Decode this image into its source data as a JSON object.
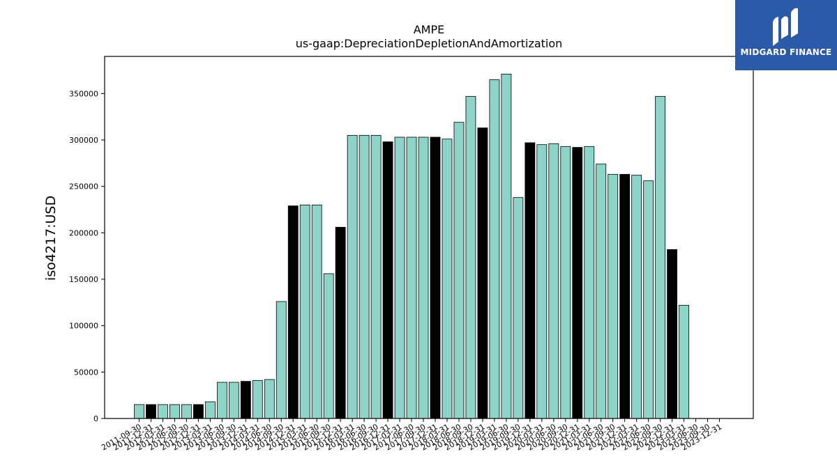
{
  "brand": {
    "name": "MIDGARD FINANCE",
    "logo": "midgard-finance-logo",
    "bg_color": "#2d5aa8"
  },
  "colors": {
    "bar_default": "#8dd3c7",
    "bar_year_end": "#000000",
    "edge": "#000000"
  },
  "chart_data": {
    "type": "bar",
    "title": "AMPE",
    "subtitle": "us-gaap:DepreciationDepletionAndAmortization",
    "ylabel": "iso4217:USD",
    "xlabel": "",
    "ylim": [
      0,
      390000
    ],
    "yticks": [
      0,
      50000,
      100000,
      150000,
      200000,
      250000,
      300000,
      350000
    ],
    "grid": false,
    "categories": [
      "2011-09-30",
      "2011-12-31",
      "2012-03-31",
      "2012-06-30",
      "2012-09-30",
      "2012-12-31",
      "2013-03-31",
      "2013-06-30",
      "2013-09-30",
      "2013-12-31",
      "2014-03-31",
      "2014-06-30",
      "2014-09-30",
      "2014-12-31",
      "2015-03-31",
      "2015-06-30",
      "2015-09-30",
      "2015-12-31",
      "2016-03-31",
      "2016-06-30",
      "2016-09-30",
      "2016-12-31",
      "2017-03-31",
      "2017-06-30",
      "2017-09-30",
      "2017-12-31",
      "2018-03-31",
      "2018-06-30",
      "2018-09-30",
      "2018-12-31",
      "2019-03-31",
      "2019-06-30",
      "2019-09-30",
      "2019-12-31",
      "2020-03-31",
      "2020-06-30",
      "2020-09-30",
      "2020-12-31",
      "2021-03-31",
      "2021-06-30",
      "2021-09-30",
      "2021-12-31",
      "2022-03-31",
      "2022-06-30",
      "2022-09-30",
      "2022-12-31",
      "2023-03-31",
      "2023-06-30",
      "2023-09-30",
      "2023-12-31"
    ],
    "values": [
      15000,
      15000,
      15000,
      15000,
      15000,
      15000,
      18000,
      39000,
      39000,
      40000,
      41000,
      42000,
      126000,
      229000,
      230000,
      230000,
      156000,
      206000,
      305000,
      305000,
      305000,
      298000,
      303000,
      303000,
      303000,
      303000,
      301000,
      319000,
      347000,
      313000,
      365000,
      371000,
      238000,
      297000,
      295000,
      296000,
      293000,
      292000,
      293000,
      274000,
      263000,
      263000,
      262000,
      256000,
      347000,
      182000,
      122000,
      0,
      0,
      0
    ],
    "year_end_flags": [
      false,
      true,
      false,
      false,
      false,
      true,
      false,
      false,
      false,
      true,
      false,
      false,
      false,
      true,
      false,
      false,
      false,
      true,
      false,
      false,
      false,
      true,
      false,
      false,
      false,
      true,
      false,
      false,
      false,
      true,
      false,
      false,
      false,
      true,
      false,
      false,
      false,
      true,
      false,
      false,
      false,
      true,
      false,
      false,
      false,
      true,
      false,
      false,
      false,
      true
    ]
  }
}
